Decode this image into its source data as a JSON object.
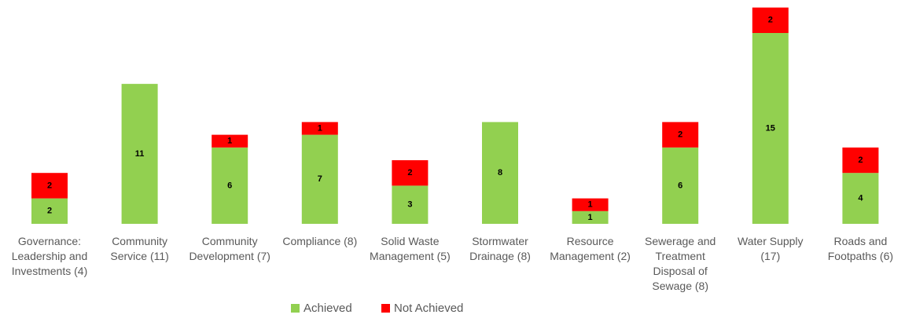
{
  "chart_data": {
    "type": "stacked_bar",
    "categories": [
      "Governance: Leadership and Investments (4)",
      "Community Service (11)",
      "Community Development (7)",
      "Compliance (8)",
      "Solid Waste Management (5)",
      "Stormwater Drainage (8)",
      "Resource Management (2)",
      "Sewerage and Treatment Disposal of Sewage (8)",
      "Water Supply (17)",
      "Roads and Footpaths (6)"
    ],
    "series": [
      {
        "name": "Achieved",
        "color": "#92d050",
        "values": [
          2,
          11,
          6,
          7,
          3,
          8,
          1,
          6,
          15,
          4
        ]
      },
      {
        "name": "Not Achieved",
        "color": "#ff0000",
        "values": [
          2,
          null,
          1,
          1,
          2,
          null,
          1,
          2,
          2,
          2
        ]
      }
    ],
    "legend": "bottom"
  }
}
